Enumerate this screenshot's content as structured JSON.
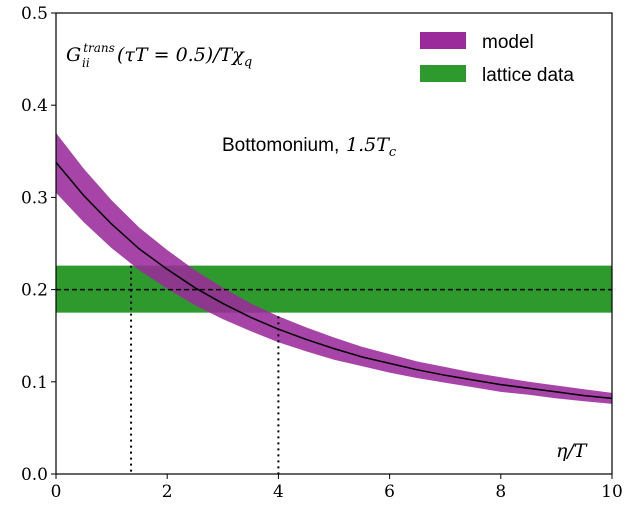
{
  "chart_data": {
    "type": "line",
    "title": "",
    "xlabel": "η/T",
    "ylabel": "G_ii^trans(τT = 0.5)/Tχ_q",
    "ylabel_parts": {
      "main": "G",
      "sup": "trans",
      "sub": "ii",
      "tail": "(τT = 0.5)/Tχ",
      "tail_sub": "q"
    },
    "annotation": "Bottomonium,",
    "annotation_math": "1.5T",
    "annotation_math_sub": "c",
    "xlim": [
      0,
      10
    ],
    "ylim": [
      0.0,
      0.5
    ],
    "xticks": [
      0,
      2,
      4,
      6,
      8,
      10
    ],
    "xtick_labels": [
      "0",
      "2",
      "4",
      "6",
      "8",
      "10"
    ],
    "yticks": [
      0.0,
      0.1,
      0.2,
      0.3,
      0.4,
      0.5
    ],
    "ytick_labels": [
      "0.0",
      "0.1",
      "0.2",
      "0.3",
      "0.4",
      "0.5"
    ],
    "grid": false,
    "legend_position": "top-right",
    "series": [
      {
        "name": "model",
        "kind": "band",
        "color": "#9b2a9b",
        "x": [
          0,
          0.5,
          1,
          1.5,
          2,
          2.5,
          3,
          3.5,
          4,
          4.5,
          5,
          5.5,
          6,
          6.5,
          7,
          7.5,
          8,
          8.5,
          9,
          9.5,
          10
        ],
        "center": [
          0.338,
          0.302,
          0.271,
          0.244,
          0.222,
          0.202,
          0.185,
          0.17,
          0.157,
          0.146,
          0.136,
          0.127,
          0.12,
          0.113,
          0.107,
          0.102,
          0.097,
          0.093,
          0.089,
          0.085,
          0.082
        ],
        "lower": [
          0.305,
          0.273,
          0.245,
          0.221,
          0.201,
          0.183,
          0.168,
          0.155,
          0.143,
          0.133,
          0.124,
          0.117,
          0.11,
          0.104,
          0.099,
          0.094,
          0.089,
          0.086,
          0.082,
          0.079,
          0.076
        ],
        "upper": [
          0.37,
          0.331,
          0.297,
          0.267,
          0.243,
          0.221,
          0.202,
          0.185,
          0.171,
          0.159,
          0.148,
          0.138,
          0.13,
          0.122,
          0.116,
          0.11,
          0.105,
          0.1,
          0.096,
          0.092,
          0.088
        ]
      },
      {
        "name": "lattice data",
        "kind": "hband",
        "color": "#2e9a2e",
        "center": 0.2,
        "lower": 0.175,
        "upper": 0.226
      }
    ],
    "vlines": [
      {
        "x": 1.35,
        "y_top": 0.226,
        "style": "dotted"
      },
      {
        "x": 4.0,
        "y_top": 0.171,
        "style": "dotted"
      }
    ]
  }
}
